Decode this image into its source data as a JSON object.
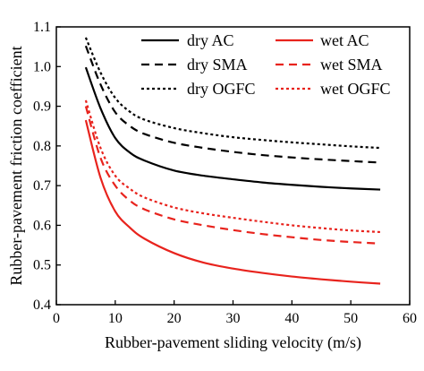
{
  "chart_data": {
    "type": "line",
    "xlabel": "Rubber-pavement sliding velocity (m/s)",
    "ylabel": "Rubber-pavement friction coefficient",
    "xlim": [
      0,
      60
    ],
    "ylim": [
      0.4,
      1.1
    ],
    "xticks": [
      0,
      10,
      20,
      30,
      40,
      50,
      60
    ],
    "yticks": [
      0.4,
      0.5,
      0.6,
      0.7,
      0.8,
      0.9,
      1.0,
      1.1
    ],
    "xtick_labels": [
      "0",
      "10",
      "20",
      "30",
      "40",
      "50",
      "60"
    ],
    "ytick_labels": [
      "0.4",
      "0.5",
      "0.6",
      "0.7",
      "0.8",
      "0.9",
      "1.0",
      "1.1"
    ],
    "grid": false,
    "legend_position": "top-right",
    "x": [
      5,
      7.5,
      10,
      12.5,
      15,
      20,
      25,
      30,
      35,
      40,
      45,
      50,
      55
    ],
    "series": [
      {
        "name": "dry AC",
        "color": "#000000",
        "dash": "solid",
        "values": [
          0.998,
          0.895,
          0.82,
          0.783,
          0.763,
          0.738,
          0.725,
          0.716,
          0.708,
          0.702,
          0.697,
          0.693,
          0.69
        ]
      },
      {
        "name": "wet AC",
        "color": "#e8231d",
        "dash": "solid",
        "values": [
          0.865,
          0.72,
          0.635,
          0.594,
          0.566,
          0.53,
          0.506,
          0.491,
          0.48,
          0.471,
          0.464,
          0.458,
          0.453
        ]
      },
      {
        "name": "dry SMA",
        "color": "#000000",
        "dash": "dashed",
        "values": [
          1.052,
          0.955,
          0.885,
          0.85,
          0.83,
          0.808,
          0.795,
          0.785,
          0.777,
          0.771,
          0.766,
          0.762,
          0.758
        ]
      },
      {
        "name": "wet SMA",
        "color": "#e8231d",
        "dash": "dashed",
        "values": [
          0.9,
          0.77,
          0.7,
          0.662,
          0.64,
          0.615,
          0.6,
          0.588,
          0.578,
          0.57,
          0.563,
          0.558,
          0.554
        ]
      },
      {
        "name": "dry OGFC",
        "color": "#000000",
        "dash": "dotted",
        "values": [
          1.073,
          0.985,
          0.921,
          0.886,
          0.866,
          0.845,
          0.832,
          0.822,
          0.815,
          0.809,
          0.804,
          0.799,
          0.795
        ]
      },
      {
        "name": "wet OGFC",
        "color": "#e8231d",
        "dash": "dotted",
        "values": [
          0.915,
          0.795,
          0.725,
          0.692,
          0.67,
          0.645,
          0.63,
          0.619,
          0.609,
          0.6,
          0.593,
          0.587,
          0.583
        ]
      }
    ]
  }
}
